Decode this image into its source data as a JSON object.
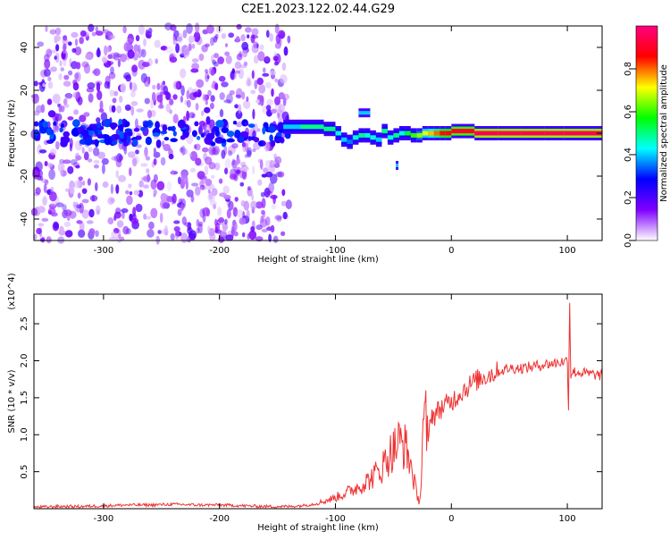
{
  "figure": {
    "title": "C2E1.2023.122.02.44.G29"
  },
  "chart_data": [
    {
      "type": "heatmap",
      "xlabel": "Height of straight line (km)",
      "ylabel": "Frequency (Hz)",
      "xlim": [
        -360,
        130
      ],
      "ylim": [
        -50,
        50
      ],
      "x_ticks": [
        -300,
        -200,
        -100,
        0,
        100
      ],
      "x_tick_labels": [
        "-300",
        "-200",
        "-100",
        "0",
        "100"
      ],
      "y_ticks": [
        -40,
        -20,
        0,
        20,
        40
      ],
      "y_tick_labels": [
        "-40",
        "-20",
        "0",
        "20",
        "40"
      ],
      "colorbar": {
        "label": "Normalized spectral amplitude",
        "range": [
          0,
          1
        ],
        "ticks": [
          0,
          0.2,
          0.4,
          0.6,
          0.8
        ],
        "tick_labels": [
          "0.0",
          "0.2",
          "0.4",
          "0.6",
          "0.8"
        ],
        "colormap": [
          "#ffffff",
          "#7f00ff",
          "#0000ff",
          "#00ffff",
          "#00ff00",
          "#ffff00",
          "#ff0000",
          "#ff0080"
        ]
      },
      "noise_region": {
        "x": [
          -360,
          -140
        ],
        "freq_spread": [
          -50,
          50
        ],
        "typical_amplitude": 0.15
      },
      "signal_track": {
        "x": [
          -145,
          -130,
          -120,
          -110,
          -100,
          -95,
          -90,
          -85,
          -80,
          -75,
          -70,
          -65,
          -60,
          -55,
          -50,
          -45,
          -40,
          -35,
          -30,
          -25,
          -20,
          -15,
          -10,
          -5,
          0,
          20,
          40,
          60,
          80,
          97,
          110,
          130
        ],
        "frequency": [
          3,
          3,
          3,
          2,
          0,
          -3,
          -4,
          -2,
          -1,
          -1,
          -2,
          -3,
          1,
          -2,
          -1,
          0,
          0,
          -1,
          -1,
          0,
          0,
          0,
          0,
          0,
          1,
          0,
          0,
          0,
          0,
          0,
          0,
          0
        ],
        "amplitude": [
          0.4,
          0.5,
          0.5,
          0.5,
          0.45,
          0.4,
          0.35,
          0.45,
          0.5,
          0.45,
          0.45,
          0.4,
          0.5,
          0.45,
          0.5,
          0.45,
          0.55,
          0.6,
          0.65,
          0.7,
          0.75,
          0.8,
          0.85,
          0.88,
          0.9,
          0.95,
          0.95,
          0.95,
          0.95,
          0.95,
          0.95,
          0.95
        ]
      },
      "secondary_features": [
        {
          "x": [
            -80,
            -70
          ],
          "frequency": 9.5,
          "amplitude": 0.4
        },
        {
          "x": [
            -48,
            -46
          ],
          "frequency": -15,
          "amplitude": 0.4
        }
      ]
    },
    {
      "type": "line",
      "xlabel": "Height of straight line (km)",
      "ylabel": "SNR (10 * v/v)",
      "y_multiplier_label": "(x10^4)",
      "xlim": [
        -360,
        130
      ],
      "ylim": [
        0,
        2.9
      ],
      "x_ticks": [
        -300,
        -200,
        -100,
        0,
        100
      ],
      "x_tick_labels": [
        "-300",
        "-200",
        "-100",
        "0",
        "100"
      ],
      "y_ticks": [
        0.5,
        1.0,
        1.5,
        2.0,
        2.5
      ],
      "y_tick_labels": [
        "0.5",
        "1.0",
        "1.5",
        "2.0",
        "2.5"
      ],
      "series": [
        {
          "color": "#ee3333",
          "x": [
            -360,
            -340,
            -320,
            -300,
            -280,
            -260,
            -240,
            -220,
            -200,
            -180,
            -160,
            -140,
            -130,
            -120,
            -110,
            -100,
            -90,
            -80,
            -70,
            -60,
            -55,
            -50,
            -45,
            -40,
            -35,
            -30,
            -28,
            -26,
            -25,
            -22,
            -20,
            -18,
            -15,
            -10,
            -5,
            0,
            10,
            20,
            30,
            40,
            50,
            60,
            70,
            80,
            90,
            100,
            101,
            102,
            103,
            104,
            105,
            110,
            120,
            130
          ],
          "y": [
            0.02,
            0.03,
            0.03,
            0.04,
            0.05,
            0.05,
            0.06,
            0.05,
            0.05,
            0.04,
            0.03,
            0.03,
            0.04,
            0.06,
            0.1,
            0.15,
            0.22,
            0.3,
            0.4,
            0.55,
            0.7,
            0.8,
            0.9,
            0.85,
            0.6,
            0.2,
            0.1,
            0.3,
            1.0,
            1.2,
            0.8,
            1.3,
            1.25,
            1.35,
            1.4,
            1.45,
            1.6,
            1.72,
            1.8,
            1.85,
            1.9,
            1.9,
            1.92,
            1.95,
            1.97,
            2.0,
            1.4,
            2.8,
            1.8,
            1.85,
            1.85,
            1.84,
            1.82,
            1.8
          ]
        }
      ]
    }
  ]
}
